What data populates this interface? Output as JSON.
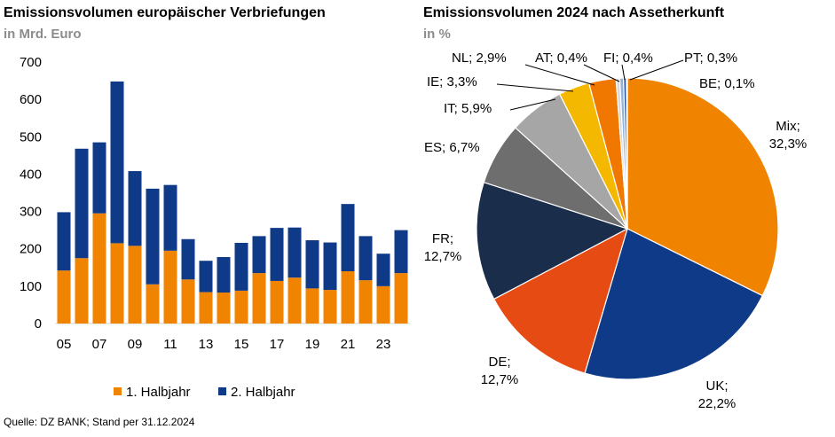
{
  "colors": {
    "h1": "#F08300",
    "h2": "#0F3A87"
  },
  "left": {
    "title": "Emissionsvolumen europäischer Verbriefungen",
    "subtitle": "in Mrd. Euro"
  },
  "right": {
    "title": "Emissionsvolumen 2024 nach Assetherkunft",
    "subtitle": "in %"
  },
  "source": "Quelle: DZ BANK; Stand per 31.12.2024",
  "chart_data": [
    {
      "type": "bar",
      "stacked": true,
      "categories": [
        "05",
        "06",
        "07",
        "08",
        "09",
        "10",
        "11",
        "12",
        "13",
        "14",
        "15",
        "16",
        "17",
        "18",
        "19",
        "20",
        "21",
        "22",
        "23",
        "24"
      ],
      "x_tick_labels": [
        "05",
        "07",
        "09",
        "11",
        "13",
        "15",
        "17",
        "19",
        "21",
        "23"
      ],
      "series": [
        {
          "name": "1. Halbjahr",
          "color": "#F08300",
          "values": [
            142,
            175,
            295,
            215,
            208,
            105,
            195,
            118,
            84,
            83,
            88,
            135,
            114,
            123,
            94,
            90,
            140,
            116,
            100,
            135
          ]
        },
        {
          "name": "2. Halbjahr",
          "color": "#0F3A87",
          "values": [
            156,
            293,
            190,
            433,
            200,
            256,
            176,
            108,
            84,
            95,
            128,
            99,
            142,
            134,
            129,
            127,
            180,
            118,
            87,
            115
          ]
        }
      ],
      "ylim": [
        0,
        700
      ],
      "yticks": [
        0,
        100,
        200,
        300,
        400,
        500,
        600,
        700
      ],
      "grid": false,
      "legend": "bottom"
    },
    {
      "type": "pie",
      "slices": [
        {
          "label": "Mix;",
          "value_label": "32,3%",
          "value": 32.3,
          "color": "#F08300"
        },
        {
          "label": "UK;",
          "value_label": "22,2%",
          "value": 22.2,
          "color": "#0F3A87"
        },
        {
          "label": "DE;",
          "value_label": "12,7%",
          "value": 12.7,
          "color": "#E54B12"
        },
        {
          "label": "FR;",
          "value_label": "12,7%",
          "value": 12.7,
          "color": "#1A2D4A"
        },
        {
          "label": "ES; 6,7%",
          "value_label": "",
          "value": 6.7,
          "color": "#6E6E6E"
        },
        {
          "label": "IT; 5,9%",
          "value_label": "",
          "value": 5.9,
          "color": "#A6A6A6"
        },
        {
          "label": "IE; 3,3%",
          "value_label": "",
          "value": 3.3,
          "color": "#F5B800"
        },
        {
          "label": "NL; 2,9%",
          "value_label": "",
          "value": 2.9,
          "color": "#F07800"
        },
        {
          "label": "AT; 0,4%",
          "value_label": "",
          "value": 0.4,
          "color": "#D9D9D9"
        },
        {
          "label": "FI; 0,4%",
          "value_label": "",
          "value": 0.4,
          "color": "#8FB4DC"
        },
        {
          "label": "PT; 0,3%",
          "value_label": "",
          "value": 0.3,
          "color": "#2F5597"
        },
        {
          "label": "BE; 0,1%",
          "value_label": "",
          "value": 0.1,
          "color": "#9DC3E6"
        }
      ]
    }
  ]
}
